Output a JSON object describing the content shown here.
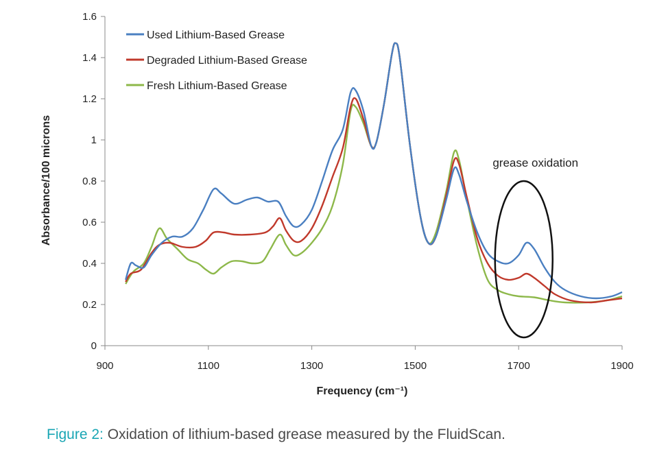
{
  "chart_data": {
    "type": "line",
    "xlabel": "Frequency (cm⁻¹)",
    "ylabel": "Absorbance/100 microns",
    "xlim": [
      900,
      1900
    ],
    "ylim": [
      0,
      1.6
    ],
    "xticks": [
      "900",
      "1100",
      "1300",
      "1500",
      "1700",
      "1900"
    ],
    "yticks": [
      "0",
      "0.2",
      "0.4",
      "0.6",
      "0.8",
      "1",
      "1.2",
      "1.4",
      "1.6"
    ],
    "grid": false,
    "legend_position": "top-left",
    "series": [
      {
        "name": "Used Lithium-Based Grease",
        "color": "#4a7fc1",
        "points": [
          [
            940,
            0.32
          ],
          [
            950,
            0.4
          ],
          [
            960,
            0.39
          ],
          [
            975,
            0.38
          ],
          [
            990,
            0.44
          ],
          [
            1010,
            0.5
          ],
          [
            1030,
            0.53
          ],
          [
            1050,
            0.53
          ],
          [
            1070,
            0.57
          ],
          [
            1090,
            0.66
          ],
          [
            1110,
            0.76
          ],
          [
            1125,
            0.74
          ],
          [
            1150,
            0.69
          ],
          [
            1175,
            0.71
          ],
          [
            1195,
            0.72
          ],
          [
            1215,
            0.7
          ],
          [
            1235,
            0.7
          ],
          [
            1250,
            0.63
          ],
          [
            1265,
            0.58
          ],
          [
            1280,
            0.59
          ],
          [
            1300,
            0.66
          ],
          [
            1320,
            0.8
          ],
          [
            1340,
            0.95
          ],
          [
            1360,
            1.05
          ],
          [
            1375,
            1.23
          ],
          [
            1385,
            1.24
          ],
          [
            1400,
            1.14
          ],
          [
            1415,
            0.97
          ],
          [
            1425,
            0.99
          ],
          [
            1440,
            1.18
          ],
          [
            1455,
            1.42
          ],
          [
            1462,
            1.47
          ],
          [
            1470,
            1.4
          ],
          [
            1490,
            0.97
          ],
          [
            1510,
            0.63
          ],
          [
            1525,
            0.5
          ],
          [
            1540,
            0.53
          ],
          [
            1560,
            0.71
          ],
          [
            1575,
            0.86
          ],
          [
            1585,
            0.83
          ],
          [
            1600,
            0.7
          ],
          [
            1620,
            0.55
          ],
          [
            1640,
            0.45
          ],
          [
            1660,
            0.41
          ],
          [
            1680,
            0.4
          ],
          [
            1700,
            0.44
          ],
          [
            1715,
            0.5
          ],
          [
            1730,
            0.47
          ],
          [
            1750,
            0.38
          ],
          [
            1770,
            0.31
          ],
          [
            1790,
            0.27
          ],
          [
            1820,
            0.24
          ],
          [
            1850,
            0.23
          ],
          [
            1880,
            0.24
          ],
          [
            1900,
            0.26
          ]
        ]
      },
      {
        "name": "Degraded Lithium-Based Grease",
        "color": "#c0392b",
        "points": [
          [
            940,
            0.31
          ],
          [
            950,
            0.35
          ],
          [
            970,
            0.37
          ],
          [
            990,
            0.45
          ],
          [
            1005,
            0.49
          ],
          [
            1025,
            0.5
          ],
          [
            1050,
            0.48
          ],
          [
            1075,
            0.48
          ],
          [
            1095,
            0.51
          ],
          [
            1110,
            0.55
          ],
          [
            1130,
            0.55
          ],
          [
            1150,
            0.54
          ],
          [
            1180,
            0.54
          ],
          [
            1210,
            0.55
          ],
          [
            1225,
            0.58
          ],
          [
            1238,
            0.62
          ],
          [
            1250,
            0.56
          ],
          [
            1265,
            0.51
          ],
          [
            1280,
            0.51
          ],
          [
            1300,
            0.57
          ],
          [
            1320,
            0.68
          ],
          [
            1340,
            0.82
          ],
          [
            1360,
            0.96
          ],
          [
            1375,
            1.16
          ],
          [
            1385,
            1.2
          ],
          [
            1400,
            1.1
          ],
          [
            1415,
            0.97
          ],
          [
            1425,
            0.99
          ],
          [
            1440,
            1.18
          ],
          [
            1455,
            1.42
          ],
          [
            1462,
            1.47
          ],
          [
            1470,
            1.4
          ],
          [
            1490,
            0.97
          ],
          [
            1510,
            0.63
          ],
          [
            1525,
            0.5
          ],
          [
            1540,
            0.53
          ],
          [
            1560,
            0.73
          ],
          [
            1575,
            0.9
          ],
          [
            1585,
            0.88
          ],
          [
            1600,
            0.72
          ],
          [
            1620,
            0.52
          ],
          [
            1640,
            0.4
          ],
          [
            1660,
            0.34
          ],
          [
            1680,
            0.32
          ],
          [
            1700,
            0.33
          ],
          [
            1715,
            0.35
          ],
          [
            1730,
            0.33
          ],
          [
            1750,
            0.29
          ],
          [
            1770,
            0.25
          ],
          [
            1800,
            0.22
          ],
          [
            1840,
            0.21
          ],
          [
            1870,
            0.22
          ],
          [
            1900,
            0.23
          ]
        ]
      },
      {
        "name": "Fresh Lithium-Based Grease",
        "color": "#8db84a",
        "points": [
          [
            940,
            0.3
          ],
          [
            955,
            0.36
          ],
          [
            975,
            0.4
          ],
          [
            990,
            0.48
          ],
          [
            1005,
            0.57
          ],
          [
            1020,
            0.52
          ],
          [
            1040,
            0.47
          ],
          [
            1060,
            0.42
          ],
          [
            1080,
            0.4
          ],
          [
            1095,
            0.37
          ],
          [
            1110,
            0.35
          ],
          [
            1125,
            0.38
          ],
          [
            1145,
            0.41
          ],
          [
            1165,
            0.41
          ],
          [
            1185,
            0.4
          ],
          [
            1205,
            0.41
          ],
          [
            1220,
            0.47
          ],
          [
            1238,
            0.54
          ],
          [
            1250,
            0.49
          ],
          [
            1265,
            0.44
          ],
          [
            1280,
            0.45
          ],
          [
            1300,
            0.5
          ],
          [
            1320,
            0.57
          ],
          [
            1340,
            0.68
          ],
          [
            1360,
            0.88
          ],
          [
            1375,
            1.14
          ],
          [
            1385,
            1.16
          ],
          [
            1400,
            1.08
          ],
          [
            1415,
            0.97
          ],
          [
            1425,
            0.99
          ],
          [
            1440,
            1.18
          ],
          [
            1455,
            1.42
          ],
          [
            1462,
            1.47
          ],
          [
            1470,
            1.4
          ],
          [
            1490,
            0.97
          ],
          [
            1510,
            0.63
          ],
          [
            1525,
            0.5
          ],
          [
            1540,
            0.55
          ],
          [
            1560,
            0.75
          ],
          [
            1575,
            0.94
          ],
          [
            1585,
            0.9
          ],
          [
            1600,
            0.71
          ],
          [
            1620,
            0.48
          ],
          [
            1640,
            0.32
          ],
          [
            1660,
            0.27
          ],
          [
            1680,
            0.25
          ],
          [
            1700,
            0.24
          ],
          [
            1730,
            0.235
          ],
          [
            1760,
            0.22
          ],
          [
            1790,
            0.21
          ],
          [
            1830,
            0.21
          ],
          [
            1870,
            0.22
          ],
          [
            1900,
            0.24
          ]
        ]
      }
    ],
    "annotations": [
      {
        "text": "grease oxidation",
        "anchor_x": 1710,
        "anchor_y": 0.42
      }
    ]
  },
  "caption": {
    "label": "Figure 2:",
    "text": " Oxidation of lithium-based grease measured by the FluidScan."
  }
}
